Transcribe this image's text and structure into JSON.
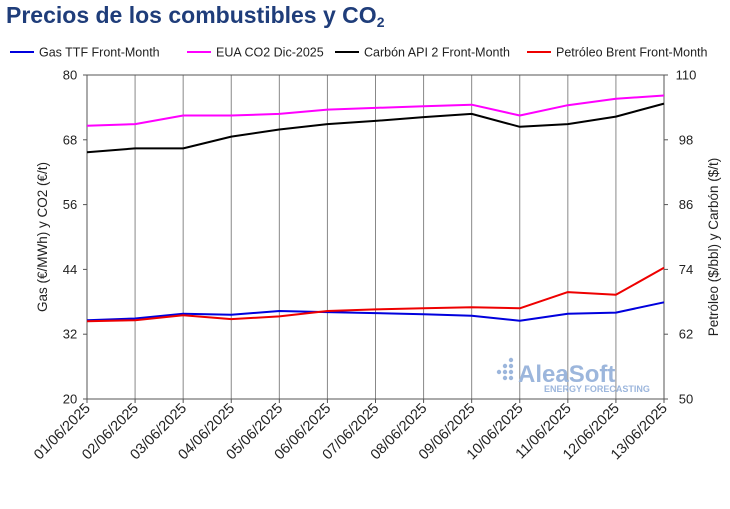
{
  "chart_data": {
    "type": "line",
    "title": "Precios de los combustibles y CO",
    "title_subscript": "2",
    "ylabel_left": "Gas (€/MWh) y CO2 (€/t)",
    "ylabel_right": "Petróleo ($/bbl) y Carbón ($/t)",
    "ylim_left": [
      20,
      80
    ],
    "yticks_left": [
      "20",
      "32",
      "44",
      "56",
      "68",
      "80"
    ],
    "ylim_right": [
      50,
      110
    ],
    "yticks_right": [
      "50",
      "62",
      "74",
      "86",
      "98",
      "110"
    ],
    "categories": [
      "01/06/2025",
      "02/06/2025",
      "03/06/2025",
      "04/06/2025",
      "05/06/2025",
      "06/06/2025",
      "07/06/2025",
      "08/06/2025",
      "09/06/2025",
      "10/06/2025",
      "11/06/2025",
      "12/06/2025",
      "13/06/2025"
    ],
    "vertical_grid": true,
    "legend_position": "top",
    "series": [
      {
        "name": "Gas TTF Front-Month",
        "axis": "left",
        "color": "#0000dd",
        "values": [
          34.6,
          34.9,
          35.8,
          35.6,
          36.3,
          36.1,
          35.9,
          35.7,
          35.4,
          34.5,
          35.8,
          36.0,
          37.9
        ]
      },
      {
        "name": "EUA CO2 Dic-2025",
        "axis": "left",
        "color": "#ff00ff",
        "values": [
          70.6,
          70.9,
          72.5,
          72.5,
          72.8,
          73.6,
          73.9,
          74.2,
          74.5,
          72.5,
          74.4,
          75.6,
          76.2
        ]
      },
      {
        "name": "Carbón API 2 Front-Month",
        "axis": "right",
        "color": "#000000",
        "values": [
          95.7,
          96.4,
          96.4,
          98.6,
          99.9,
          100.9,
          101.5,
          102.2,
          102.8,
          100.4,
          100.9,
          102.3,
          104.7
        ]
      },
      {
        "name": "Petróleo Brent Front-Month",
        "axis": "right",
        "color": "#ee0000",
        "values": [
          64.4,
          64.6,
          65.5,
          64.8,
          65.3,
          66.3,
          66.6,
          66.8,
          67.0,
          66.8,
          69.8,
          69.3,
          74.3
        ]
      }
    ]
  },
  "watermark": {
    "brand": "AleaSoft",
    "tagline": "ENERGY FORECASTING"
  }
}
